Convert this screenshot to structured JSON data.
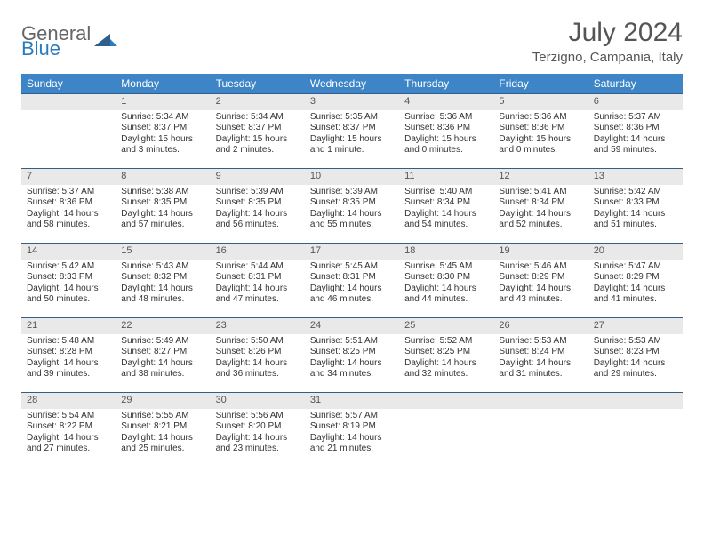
{
  "brand": {
    "line1": "General",
    "line2": "Blue"
  },
  "title": "July 2024",
  "location": "Terzigno, Campania, Italy",
  "colors": {
    "header_bg": "#3d85c6",
    "header_text": "#ffffff",
    "daynum_bg": "#e9e9e9",
    "daynum_border": "#2f5f8a",
    "body_text": "#333333",
    "brand_gray": "#666666",
    "brand_blue": "#2a7bbf"
  },
  "headers": [
    "Sunday",
    "Monday",
    "Tuesday",
    "Wednesday",
    "Thursday",
    "Friday",
    "Saturday"
  ],
  "weeks": [
    [
      null,
      {
        "n": "1",
        "sr": "5:34 AM",
        "ss": "8:37 PM",
        "dl": "15 hours and 3 minutes."
      },
      {
        "n": "2",
        "sr": "5:34 AM",
        "ss": "8:37 PM",
        "dl": "15 hours and 2 minutes."
      },
      {
        "n": "3",
        "sr": "5:35 AM",
        "ss": "8:37 PM",
        "dl": "15 hours and 1 minute."
      },
      {
        "n": "4",
        "sr": "5:36 AM",
        "ss": "8:36 PM",
        "dl": "15 hours and 0 minutes."
      },
      {
        "n": "5",
        "sr": "5:36 AM",
        "ss": "8:36 PM",
        "dl": "15 hours and 0 minutes."
      },
      {
        "n": "6",
        "sr": "5:37 AM",
        "ss": "8:36 PM",
        "dl": "14 hours and 59 minutes."
      }
    ],
    [
      {
        "n": "7",
        "sr": "5:37 AM",
        "ss": "8:36 PM",
        "dl": "14 hours and 58 minutes."
      },
      {
        "n": "8",
        "sr": "5:38 AM",
        "ss": "8:35 PM",
        "dl": "14 hours and 57 minutes."
      },
      {
        "n": "9",
        "sr": "5:39 AM",
        "ss": "8:35 PM",
        "dl": "14 hours and 56 minutes."
      },
      {
        "n": "10",
        "sr": "5:39 AM",
        "ss": "8:35 PM",
        "dl": "14 hours and 55 minutes."
      },
      {
        "n": "11",
        "sr": "5:40 AM",
        "ss": "8:34 PM",
        "dl": "14 hours and 54 minutes."
      },
      {
        "n": "12",
        "sr": "5:41 AM",
        "ss": "8:34 PM",
        "dl": "14 hours and 52 minutes."
      },
      {
        "n": "13",
        "sr": "5:42 AM",
        "ss": "8:33 PM",
        "dl": "14 hours and 51 minutes."
      }
    ],
    [
      {
        "n": "14",
        "sr": "5:42 AM",
        "ss": "8:33 PM",
        "dl": "14 hours and 50 minutes."
      },
      {
        "n": "15",
        "sr": "5:43 AM",
        "ss": "8:32 PM",
        "dl": "14 hours and 48 minutes."
      },
      {
        "n": "16",
        "sr": "5:44 AM",
        "ss": "8:31 PM",
        "dl": "14 hours and 47 minutes."
      },
      {
        "n": "17",
        "sr": "5:45 AM",
        "ss": "8:31 PM",
        "dl": "14 hours and 46 minutes."
      },
      {
        "n": "18",
        "sr": "5:45 AM",
        "ss": "8:30 PM",
        "dl": "14 hours and 44 minutes."
      },
      {
        "n": "19",
        "sr": "5:46 AM",
        "ss": "8:29 PM",
        "dl": "14 hours and 43 minutes."
      },
      {
        "n": "20",
        "sr": "5:47 AM",
        "ss": "8:29 PM",
        "dl": "14 hours and 41 minutes."
      }
    ],
    [
      {
        "n": "21",
        "sr": "5:48 AM",
        "ss": "8:28 PM",
        "dl": "14 hours and 39 minutes."
      },
      {
        "n": "22",
        "sr": "5:49 AM",
        "ss": "8:27 PM",
        "dl": "14 hours and 38 minutes."
      },
      {
        "n": "23",
        "sr": "5:50 AM",
        "ss": "8:26 PM",
        "dl": "14 hours and 36 minutes."
      },
      {
        "n": "24",
        "sr": "5:51 AM",
        "ss": "8:25 PM",
        "dl": "14 hours and 34 minutes."
      },
      {
        "n": "25",
        "sr": "5:52 AM",
        "ss": "8:25 PM",
        "dl": "14 hours and 32 minutes."
      },
      {
        "n": "26",
        "sr": "5:53 AM",
        "ss": "8:24 PM",
        "dl": "14 hours and 31 minutes."
      },
      {
        "n": "27",
        "sr": "5:53 AM",
        "ss": "8:23 PM",
        "dl": "14 hours and 29 minutes."
      }
    ],
    [
      {
        "n": "28",
        "sr": "5:54 AM",
        "ss": "8:22 PM",
        "dl": "14 hours and 27 minutes."
      },
      {
        "n": "29",
        "sr": "5:55 AM",
        "ss": "8:21 PM",
        "dl": "14 hours and 25 minutes."
      },
      {
        "n": "30",
        "sr": "5:56 AM",
        "ss": "8:20 PM",
        "dl": "14 hours and 23 minutes."
      },
      {
        "n": "31",
        "sr": "5:57 AM",
        "ss": "8:19 PM",
        "dl": "14 hours and 21 minutes."
      },
      null,
      null,
      null
    ]
  ],
  "labels": {
    "sunrise": "Sunrise:",
    "sunset": "Sunset:",
    "daylight": "Daylight:"
  }
}
